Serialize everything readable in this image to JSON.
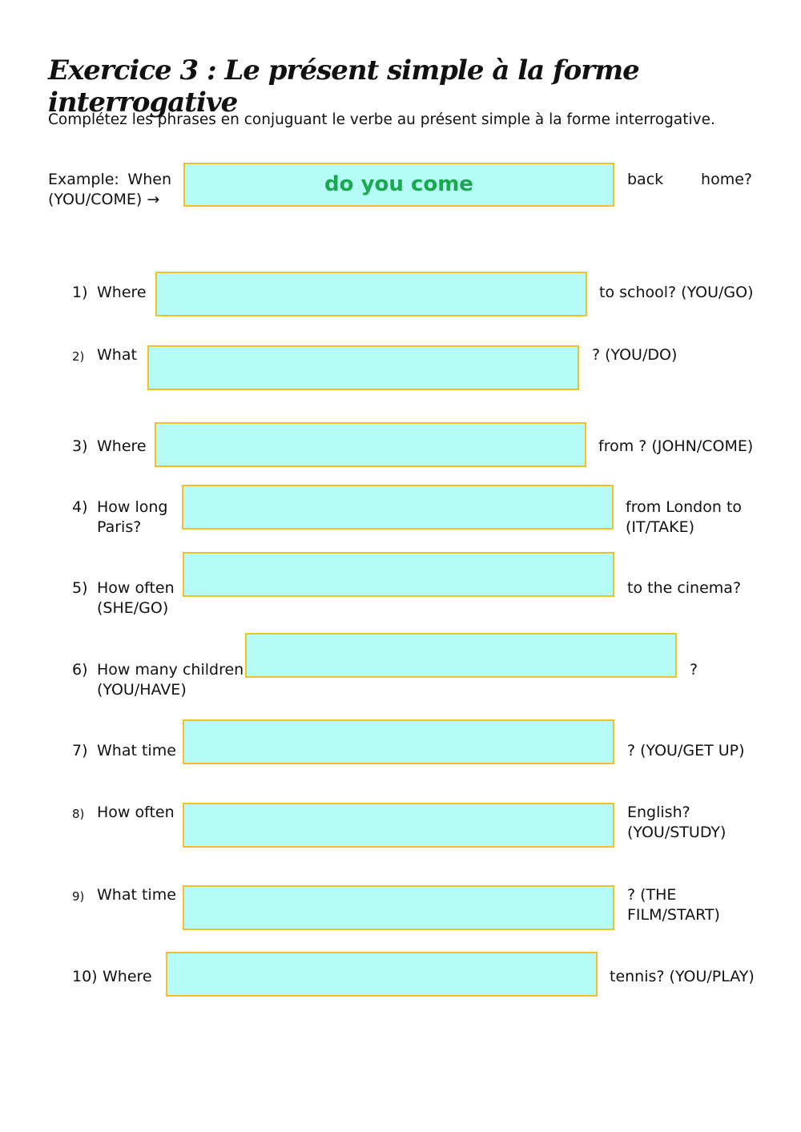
{
  "header": {
    "title": "Exercice 3 : Le présent simple à la forme interrogative",
    "instruction": "Complétez les phrases en conjuguant le verbe au présent simple à la forme interrogative."
  },
  "example": {
    "prefix": [
      "Example:  When",
      "(YOU/COME) →"
    ],
    "answer": "do you come",
    "suffix": [
      "back home?"
    ]
  },
  "items": [
    {
      "number": "1)",
      "prefix": [
        "Where"
      ],
      "suffix": [
        "to school? (YOU/GO)"
      ]
    },
    {
      "number": "2)",
      "prefix": [
        "What"
      ],
      "suffix": [
        "? (YOU/DO)"
      ]
    },
    {
      "number": "3)",
      "prefix": [
        "Where"
      ],
      "suffix": [
        "from ? (JOHN/COME)"
      ]
    },
    {
      "number": "4)",
      "prefix": [
        "How long",
        "Paris?"
      ],
      "suffix": [
        "from London to",
        "(IT/TAKE)"
      ]
    },
    {
      "number": "5)",
      "prefix": [
        "How often",
        "(SHE/GO)"
      ],
      "suffix": [
        "to the cinema?"
      ]
    },
    {
      "number": "6)",
      "prefix": [
        "How many children",
        "(YOU/HAVE)"
      ],
      "suffix": [
        "?"
      ]
    },
    {
      "number": "7)",
      "prefix": [
        "What time"
      ],
      "suffix": [
        "? (YOU/GET UP)"
      ]
    },
    {
      "number": "8)",
      "prefix": [
        "How often"
      ],
      "suffix": [
        "English?",
        "(YOU/STUDY)"
      ]
    },
    {
      "number": "9)",
      "prefix": [
        "What time"
      ],
      "suffix": [
        "? (THE",
        "FILM/START)"
      ]
    },
    {
      "number": "10)",
      "prefix": [
        "Where"
      ],
      "suffix": [
        "tennis? (YOU/PLAY)"
      ]
    }
  ]
}
